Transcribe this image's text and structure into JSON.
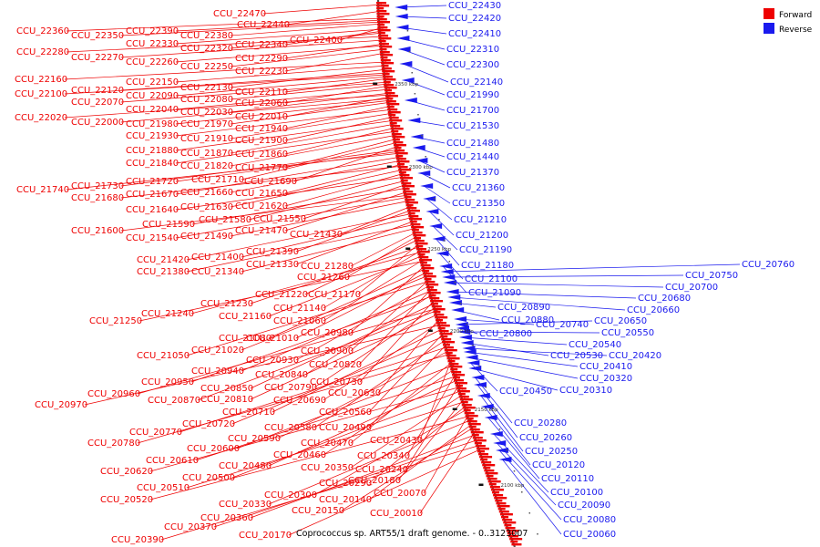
{
  "legend": {
    "forward": {
      "label": "Forward",
      "color": "#ee0000"
    },
    "reverse": {
      "label": "Reverse",
      "color": "#1a1aee"
    }
  },
  "caption": "Coprococcus sp. ART55/1 draft genome. - 0..3123007",
  "ticks": [
    "2350 kbp",
    "2300 kbp",
    "2250 kbp",
    "2200 kbp",
    "2150 kbp",
    "2100 kbp"
  ],
  "forward_labels": [
    "CCU_22470",
    "CCU_22440",
    "CCU_22360",
    "CCU_22350",
    "CCU_22390",
    "CCU_22380",
    "CCU_22400",
    "CCU_22330",
    "CCU_22320",
    "CCU_22340",
    "CCU_22280",
    "CCU_22270",
    "CCU_22260",
    "CCU_22250",
    "CCU_22290",
    "CCU_22230",
    "CCU_22160",
    "CCU_22150",
    "CCU_22130",
    "CCU_22120",
    "CCU_22100",
    "CCU_22090",
    "CCU_22110",
    "CCU_22070",
    "CCU_22080",
    "CCU_22060",
    "CCU_22040",
    "CCU_22030",
    "CCU_22020",
    "CCU_22000",
    "CCU_21980",
    "CCU_22010",
    "CCU_21970",
    "CCU_21940",
    "CCU_21930",
    "CCU_21910",
    "CCU_21900",
    "CCU_21880",
    "CCU_21870",
    "CCU_21860",
    "CCU_21840",
    "CCU_21820",
    "CCU_21770",
    "CCU_21710",
    "CCU_21690",
    "CCU_21730",
    "CCU_21720",
    "CCU_21740",
    "CCU_21670",
    "CCU_21660",
    "CCU_21650",
    "CCU_21680",
    "CCU_21630",
    "CCU_21620",
    "CCU_21640",
    "CCU_21580",
    "CCU_21550",
    "CCU_21590",
    "CCU_21470",
    "CCU_21600",
    "CCU_21540",
    "CCU_21490",
    "CCU_21430",
    "CCU_21390",
    "CCU_21420",
    "CCU_21400",
    "CCU_21330",
    "CCU_21380",
    "CCU_21340",
    "CCU_21280",
    "CCU_21260",
    "CCU_21220",
    "CCU_21170",
    "CCU_21230",
    "CCU_21140",
    "CCU_21240",
    "CCU_21160",
    "CCU_21060",
    "CCU_21250",
    "CCU_20980",
    "CCU_21080",
    "CCU_21010",
    "CCU_21020",
    "CCU_20900",
    "CCU_21050",
    "CCU_20930",
    "CCU_20820",
    "CCU_20940",
    "CCU_20840",
    "CCU_20950",
    "CCU_20730",
    "CCU_20850",
    "CCU_20790",
    "CCU_20960",
    "CCU_20870",
    "CCU_20810",
    "CCU_20630",
    "CCU_20690",
    "CCU_20970",
    "CCU_20710",
    "CCU_20560",
    "CCU_20720",
    "CCU_20580",
    "CCU_20490",
    "CCU_20770",
    "CCU_20590",
    "CCU_20780",
    "CCU_20430",
    "CCU_20470",
    "CCU_20600",
    "CCU_20460",
    "CCU_20340",
    "CCU_20610",
    "CCU_20480",
    "CCU_20240",
    "CCU_20620",
    "CCU_20500",
    "CCU_20350",
    "CCU_20180",
    "CCU_20510",
    "CCU_20290",
    "CCU_20300",
    "CCU_20070",
    "CCU_20520",
    "CCU_20330",
    "CCU_20140",
    "CCU_20150",
    "CCU_20010",
    "CCU_20360",
    "CCU_20370",
    "CCU_20390",
    "CCU_20170"
  ],
  "reverse_labels": [
    "CCU_22430",
    "CCU_22420",
    "CCU_22410",
    "CCU_22310",
    "CCU_22300",
    "CCU_22140",
    "CCU_21990",
    "CCU_21700",
    "CCU_21530",
    "CCU_21480",
    "CCU_21440",
    "CCU_21370",
    "CCU_21360",
    "CCU_21350",
    "CCU_21210",
    "CCU_21200",
    "CCU_21190",
    "CCU_21180",
    "CCU_21100",
    "CCU_21090",
    "CCU_20760",
    "CCU_20750",
    "CCU_20700",
    "CCU_20680",
    "CCU_20660",
    "CCU_20890",
    "CCU_20880",
    "CCU_20740",
    "CCU_20650",
    "CCU_20800",
    "CCU_20550",
    "CCU_20540",
    "CCU_20530",
    "CCU_20420",
    "CCU_20410",
    "CCU_20320",
    "CCU_20450",
    "CCU_20310",
    "CCU_20280",
    "CCU_20260",
    "CCU_20250",
    "CCU_20120",
    "CCU_20110",
    "CCU_20100",
    "CCU_20090",
    "CCU_20080",
    "CCU_20060"
  ]
}
